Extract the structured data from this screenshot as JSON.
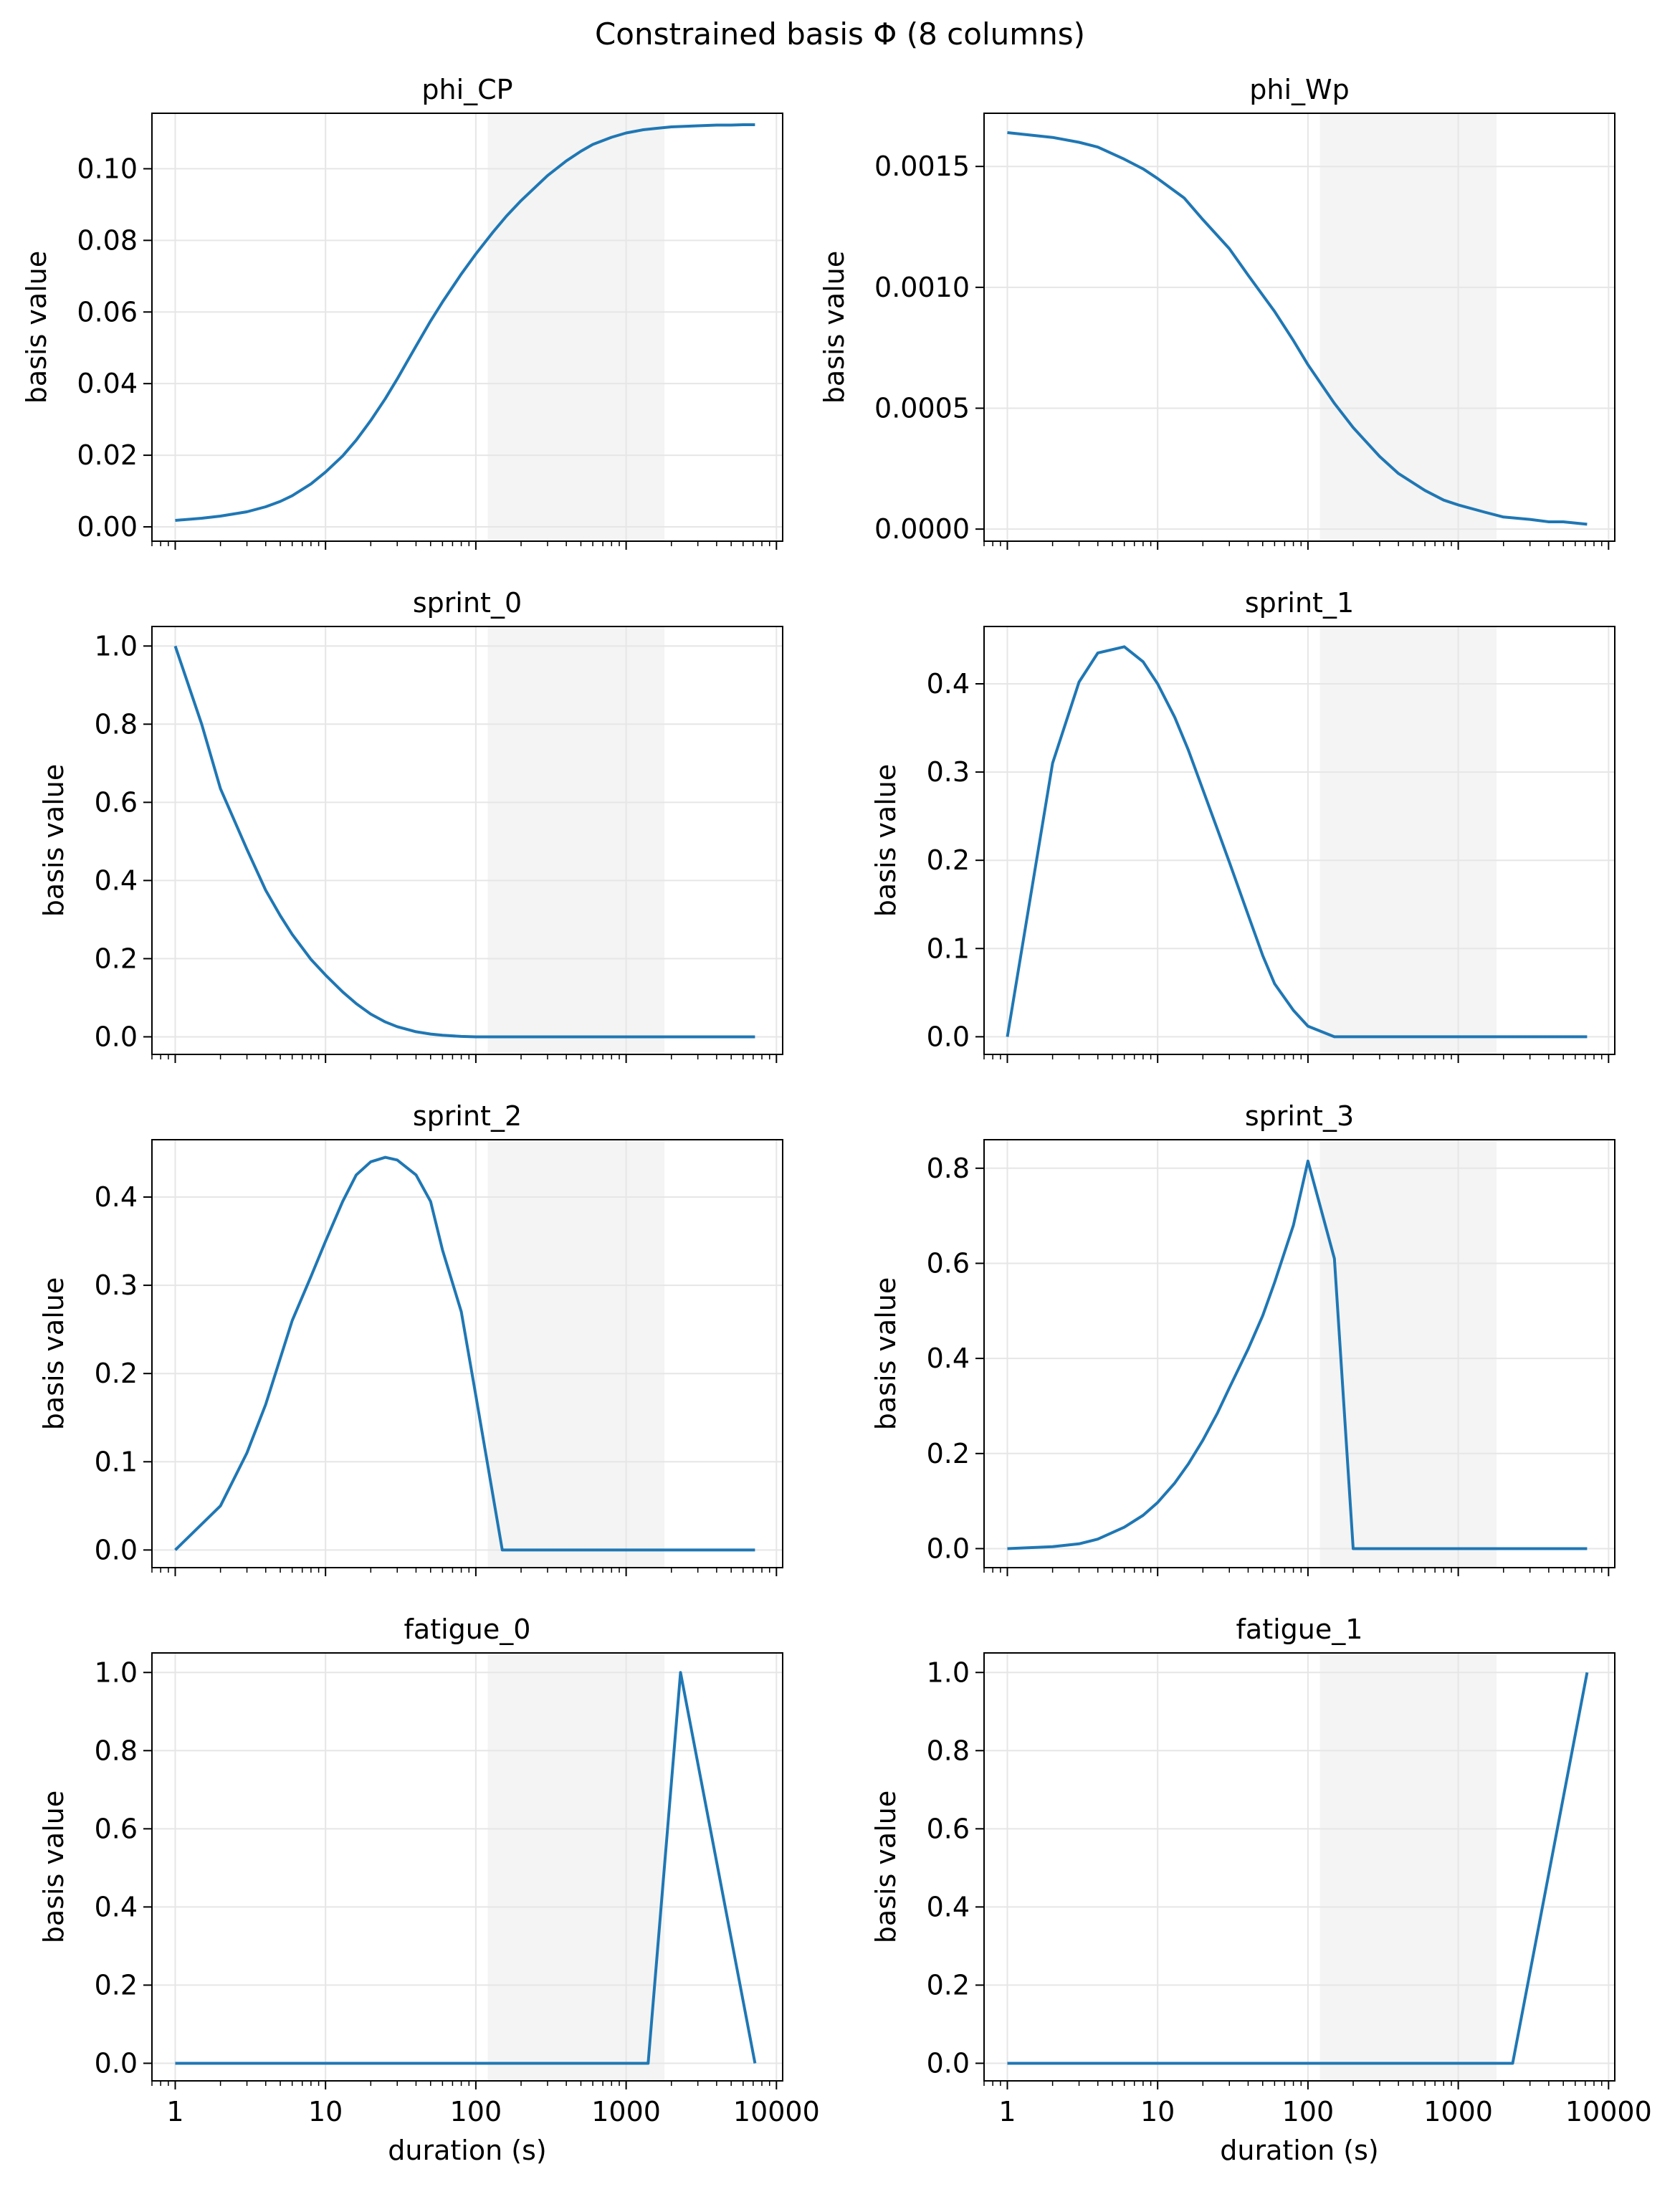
{
  "figure": {
    "suptitle": "Constrained basis Φ (8 columns)",
    "line_color": "#1f77b4",
    "shade_color": "#f4f4f4",
    "grid_color": "#e6e6e6"
  },
  "chart_data": [
    {
      "type": "line",
      "title": "phi_CP",
      "xlabel": "",
      "ylabel": "basis value",
      "xscale": "log",
      "xlim": [
        0.7,
        11000
      ],
      "ylim": [
        -0.004,
        0.1155
      ],
      "yticks": [
        "0.00",
        "0.02",
        "0.04",
        "0.06",
        "0.08",
        "0.10"
      ],
      "ytick_values": [
        0,
        0.02,
        0.04,
        0.06,
        0.08,
        0.1
      ],
      "xticks": [
        1,
        10,
        100,
        1000,
        10000
      ],
      "xtick_labels": [],
      "shaded_x_range": [
        120,
        1800
      ],
      "grid": true,
      "x": [
        1,
        1.5,
        2,
        3,
        4,
        5,
        6,
        8,
        10,
        13,
        16,
        20,
        25,
        30,
        40,
        50,
        60,
        80,
        100,
        130,
        160,
        200,
        300,
        400,
        500,
        600,
        800,
        1000,
        1300,
        1600,
        2000,
        3000,
        4000,
        5000,
        6000,
        7200
      ],
      "y": [
        0.0018,
        0.0024,
        0.003,
        0.0042,
        0.0056,
        0.0071,
        0.0087,
        0.012,
        0.0153,
        0.0198,
        0.0242,
        0.0297,
        0.0358,
        0.0413,
        0.0505,
        0.0575,
        0.0628,
        0.0706,
        0.0762,
        0.0823,
        0.0868,
        0.0911,
        0.0981,
        0.1022,
        0.1049,
        0.1068,
        0.1088,
        0.11,
        0.1109,
        0.1113,
        0.1117,
        0.112,
        0.1122,
        0.1122,
        0.1123,
        0.1123
      ]
    },
    {
      "type": "line",
      "title": "phi_Wp",
      "xlabel": "",
      "ylabel": "basis value",
      "xscale": "log",
      "xlim": [
        0.7,
        11000
      ],
      "ylim": [
        -5e-05,
        0.00172
      ],
      "yticks": [
        "0.0000",
        "0.0005",
        "0.0010",
        "0.0015"
      ],
      "ytick_values": [
        0,
        0.0005,
        0.001,
        0.0015
      ],
      "xticks": [
        1,
        10,
        100,
        1000,
        10000
      ],
      "xtick_labels": [],
      "shaded_x_range": [
        120,
        1800
      ],
      "grid": true,
      "x": [
        1,
        2,
        3,
        4,
        6,
        8,
        10,
        15,
        20,
        30,
        40,
        60,
        80,
        100,
        150,
        200,
        300,
        400,
        600,
        800,
        1000,
        1500,
        2000,
        3000,
        4000,
        5000,
        7200
      ],
      "y": [
        0.00164,
        0.00162,
        0.0016,
        0.00158,
        0.00153,
        0.00149,
        0.00145,
        0.00137,
        0.00128,
        0.00116,
        0.00105,
        0.0009,
        0.00078,
        0.00068,
        0.00052,
        0.00042,
        0.0003,
        0.00023,
        0.00016,
        0.00012,
        0.0001,
        7e-05,
        5e-05,
        4e-05,
        3e-05,
        3e-05,
        2e-05
      ]
    },
    {
      "type": "line",
      "title": "sprint_0",
      "xlabel": "",
      "ylabel": "basis value",
      "xscale": "log",
      "xlim": [
        0.7,
        11000
      ],
      "ylim": [
        -0.045,
        1.05
      ],
      "yticks": [
        "0.0",
        "0.2",
        "0.4",
        "0.6",
        "0.8",
        "1.0"
      ],
      "ytick_values": [
        0,
        0.2,
        0.4,
        0.6,
        0.8,
        1
      ],
      "xticks": [
        1,
        10,
        100,
        1000,
        10000
      ],
      "xtick_labels": [],
      "shaded_x_range": [
        120,
        1800
      ],
      "grid": true,
      "x": [
        1,
        1.5,
        2,
        3,
        4,
        5,
        6,
        8,
        10,
        13,
        16,
        20,
        25,
        30,
        40,
        50,
        60,
        80,
        100,
        150,
        200,
        300,
        500,
        1000,
        2000,
        5000,
        7200
      ],
      "y": [
        1,
        0.8,
        0.635,
        0.48,
        0.375,
        0.31,
        0.262,
        0.198,
        0.158,
        0.115,
        0.085,
        0.058,
        0.038,
        0.026,
        0.013,
        0.007,
        0.004,
        0.001,
        0,
        0,
        0,
        0,
        0,
        0,
        0,
        0,
        0
      ]
    },
    {
      "type": "line",
      "title": "sprint_1",
      "xlabel": "",
      "ylabel": "basis value",
      "xscale": "log",
      "xlim": [
        0.7,
        11000
      ],
      "ylim": [
        -0.02,
        0.465
      ],
      "yticks": [
        "0.0",
        "0.1",
        "0.2",
        "0.3",
        "0.4"
      ],
      "ytick_values": [
        0,
        0.1,
        0.2,
        0.3,
        0.4
      ],
      "xticks": [
        1,
        10,
        100,
        1000,
        10000
      ],
      "xtick_labels": [],
      "shaded_x_range": [
        120,
        1800
      ],
      "grid": true,
      "x": [
        1,
        2,
        3,
        4,
        6,
        8,
        10,
        13,
        16,
        20,
        25,
        30,
        40,
        50,
        60,
        80,
        100,
        150,
        200,
        300,
        500,
        1000,
        2000,
        5000,
        7200
      ],
      "y": [
        0,
        0.31,
        0.402,
        0.435,
        0.442,
        0.425,
        0.4,
        0.362,
        0.325,
        0.28,
        0.235,
        0.198,
        0.138,
        0.092,
        0.06,
        0.03,
        0.012,
        0,
        0,
        0,
        0,
        0,
        0,
        0,
        0
      ]
    },
    {
      "type": "line",
      "title": "sprint_2",
      "xlabel": "",
      "ylabel": "basis value",
      "xscale": "log",
      "xlim": [
        0.7,
        11000
      ],
      "ylim": [
        -0.02,
        0.465
      ],
      "yticks": [
        "0.0",
        "0.1",
        "0.2",
        "0.3",
        "0.4"
      ],
      "ytick_values": [
        0,
        0.1,
        0.2,
        0.3,
        0.4
      ],
      "xticks": [
        1,
        10,
        100,
        1000,
        10000
      ],
      "xtick_labels": [],
      "shaded_x_range": [
        120,
        1800
      ],
      "grid": true,
      "x": [
        1,
        2,
        3,
        4,
        6,
        8,
        10,
        13,
        16,
        20,
        25,
        30,
        40,
        50,
        60,
        80,
        100,
        150,
        200,
        300,
        500,
        1000,
        2000,
        5000,
        7200
      ],
      "y": [
        0,
        0.05,
        0.11,
        0.165,
        0.26,
        0.31,
        0.35,
        0.395,
        0.425,
        0.44,
        0.445,
        0.442,
        0.425,
        0.395,
        0.34,
        0.27,
        0.175,
        0,
        0,
        0,
        0,
        0,
        0,
        0,
        0
      ]
    },
    {
      "type": "line",
      "title": "sprint_3",
      "xlabel": "",
      "ylabel": "basis value",
      "xscale": "log",
      "xlim": [
        0.7,
        11000
      ],
      "ylim": [
        -0.04,
        0.86
      ],
      "yticks": [
        "0.0",
        "0.2",
        "0.4",
        "0.6",
        "0.8"
      ],
      "ytick_values": [
        0,
        0.2,
        0.4,
        0.6,
        0.8
      ],
      "xticks": [
        1,
        10,
        100,
        1000,
        10000
      ],
      "xtick_labels": [],
      "shaded_x_range": [
        120,
        1800
      ],
      "grid": true,
      "x": [
        1,
        2,
        3,
        4,
        6,
        8,
        10,
        13,
        16,
        20,
        25,
        30,
        40,
        50,
        60,
        80,
        100,
        150,
        200,
        300,
        500,
        1000,
        2000,
        5000,
        7200
      ],
      "y": [
        0,
        0.004,
        0.01,
        0.02,
        0.045,
        0.07,
        0.097,
        0.138,
        0.178,
        0.228,
        0.285,
        0.338,
        0.42,
        0.49,
        0.56,
        0.68,
        0.815,
        0.61,
        0,
        0,
        0,
        0,
        0,
        0,
        0
      ]
    },
    {
      "type": "line",
      "title": "fatigue_0",
      "xlabel": "duration (s)",
      "ylabel": "basis value",
      "xscale": "log",
      "xlim": [
        0.7,
        11000
      ],
      "ylim": [
        -0.045,
        1.05
      ],
      "yticks": [
        "0.0",
        "0.2",
        "0.4",
        "0.6",
        "0.8",
        "1.0"
      ],
      "ytick_values": [
        0,
        0.2,
        0.4,
        0.6,
        0.8,
        1
      ],
      "xticks": [
        1,
        10,
        100,
        1000,
        10000
      ],
      "xtick_labels": [
        "1",
        "10",
        "100",
        "1000",
        "10000"
      ],
      "shaded_x_range": [
        120,
        1800
      ],
      "grid": true,
      "x": [
        1,
        10,
        100,
        1000,
        1400,
        2300,
        7200
      ],
      "y": [
        0,
        0,
        0,
        0,
        0,
        1,
        0
      ]
    },
    {
      "type": "line",
      "title": "fatigue_1",
      "xlabel": "duration (s)",
      "ylabel": "basis value",
      "xscale": "log",
      "xlim": [
        0.7,
        11000
      ],
      "ylim": [
        -0.045,
        1.05
      ],
      "yticks": [
        "0.0",
        "0.2",
        "0.4",
        "0.6",
        "0.8",
        "1.0"
      ],
      "ytick_values": [
        0,
        0.2,
        0.4,
        0.6,
        0.8,
        1
      ],
      "xticks": [
        1,
        10,
        100,
        1000,
        10000
      ],
      "xtick_labels": [
        "1",
        "10",
        "100",
        "1000",
        "10000"
      ],
      "shaded_x_range": [
        120,
        1800
      ],
      "grid": true,
      "x": [
        1,
        10,
        100,
        1000,
        2300,
        7200
      ],
      "y": [
        0,
        0,
        0,
        0,
        0,
        1
      ]
    }
  ]
}
